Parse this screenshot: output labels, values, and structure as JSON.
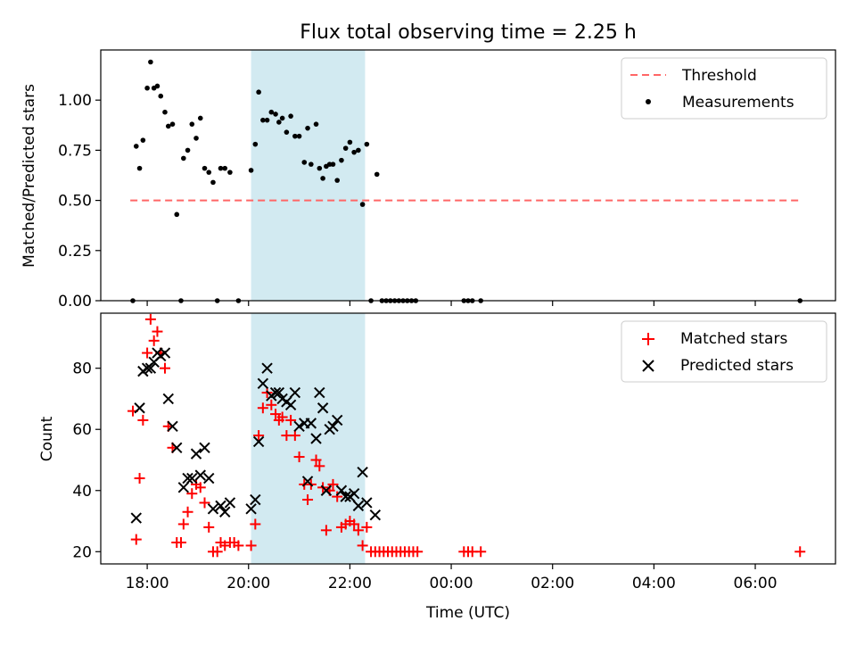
{
  "title": "Flux total observing time = 2.25 h",
  "chart_data": [
    {
      "type": "scatter",
      "ylabel": "Matched/Predicted stars",
      "xlabel": "",
      "ylim": [
        0,
        1.25
      ],
      "y_ticks": [
        0.0,
        0.25,
        0.5,
        0.75,
        1.0
      ],
      "y_tick_labels": [
        "0.00",
        "0.25",
        "0.50",
        "0.75",
        "1.00"
      ],
      "legend_position": "top-right",
      "legend": [
        "Threshold",
        "Measurements"
      ],
      "highlight_band": {
        "x_start": "20:03",
        "x_end": "22:18",
        "color": "#add8e6"
      },
      "threshold": {
        "name": "Threshold",
        "y": 0.5,
        "x_start": "17:40",
        "x_end": "06:55",
        "color": "#ff6666"
      },
      "measurements": {
        "name": "Measurements",
        "color": "#000000",
        "points": [
          [
            "17:43",
            0.0
          ],
          [
            "17:47",
            0.77
          ],
          [
            "17:51",
            0.66
          ],
          [
            "17:55",
            0.8
          ],
          [
            "18:00",
            1.06
          ],
          [
            "18:04",
            1.19
          ],
          [
            "18:08",
            1.06
          ],
          [
            "18:12",
            1.07
          ],
          [
            "18:16",
            1.02
          ],
          [
            "18:21",
            0.94
          ],
          [
            "18:25",
            0.87
          ],
          [
            "18:30",
            0.88
          ],
          [
            "18:35",
            0.43
          ],
          [
            "18:40",
            0.0
          ],
          [
            "18:43",
            0.71
          ],
          [
            "18:48",
            0.75
          ],
          [
            "18:53",
            0.88
          ],
          [
            "18:58",
            0.81
          ],
          [
            "19:03",
            0.91
          ],
          [
            "19:08",
            0.66
          ],
          [
            "19:13",
            0.64
          ],
          [
            "19:18",
            0.59
          ],
          [
            "19:23",
            0.0
          ],
          [
            "19:27",
            0.66
          ],
          [
            "19:32",
            0.66
          ],
          [
            "19:38",
            0.64
          ],
          [
            "19:48",
            0.0
          ],
          [
            "20:03",
            0.65
          ],
          [
            "20:08",
            0.78
          ],
          [
            "20:12",
            1.04
          ],
          [
            "20:17",
            0.9
          ],
          [
            "20:22",
            0.9
          ],
          [
            "20:27",
            0.94
          ],
          [
            "20:32",
            0.93
          ],
          [
            "20:36",
            0.89
          ],
          [
            "20:40",
            0.91
          ],
          [
            "20:45",
            0.84
          ],
          [
            "20:50",
            0.92
          ],
          [
            "20:55",
            0.82
          ],
          [
            "21:00",
            0.82
          ],
          [
            "21:06",
            0.69
          ],
          [
            "21:10",
            0.86
          ],
          [
            "21:14",
            0.68
          ],
          [
            "21:20",
            0.88
          ],
          [
            "21:24",
            0.66
          ],
          [
            "21:28",
            0.61
          ],
          [
            "21:32",
            0.67
          ],
          [
            "21:36",
            0.68
          ],
          [
            "21:40",
            0.68
          ],
          [
            "21:45",
            0.6
          ],
          [
            "21:50",
            0.7
          ],
          [
            "21:55",
            0.76
          ],
          [
            "22:00",
            0.79
          ],
          [
            "22:05",
            0.74
          ],
          [
            "22:10",
            0.75
          ],
          [
            "22:15",
            0.48
          ],
          [
            "22:20",
            0.78
          ],
          [
            "22:25",
            0.0
          ],
          [
            "22:32",
            0.63
          ],
          [
            "22:38",
            0.0
          ],
          [
            "22:43",
            0.0
          ],
          [
            "22:48",
            0.0
          ],
          [
            "22:53",
            0.0
          ],
          [
            "22:58",
            0.0
          ],
          [
            "23:03",
            0.0
          ],
          [
            "23:08",
            0.0
          ],
          [
            "23:13",
            0.0
          ],
          [
            "23:18",
            0.0
          ],
          [
            "00:15",
            0.0
          ],
          [
            "00:20",
            0.0
          ],
          [
            "00:25",
            0.0
          ],
          [
            "00:35",
            0.0
          ],
          [
            "06:53",
            0.0
          ]
        ]
      }
    },
    {
      "type": "scatter",
      "ylabel": "Count",
      "xlabel": "Time (UTC)",
      "ylim": [
        16,
        98
      ],
      "y_ticks": [
        20,
        40,
        60,
        80
      ],
      "y_tick_labels": [
        "20",
        "40",
        "60",
        "80"
      ],
      "x_ticks": [
        "18:00",
        "20:00",
        "22:00",
        "00:00",
        "02:00",
        "04:00",
        "06:00"
      ],
      "xlim": [
        "17:05",
        "07:35"
      ],
      "legend_position": "top-right",
      "legend": [
        "Matched stars",
        "Predicted stars"
      ],
      "highlight_band": {
        "x_start": "20:03",
        "x_end": "22:18",
        "color": "#add8e6"
      },
      "series": [
        {
          "name": "Matched stars",
          "marker": "+",
          "color": "#ff0000",
          "points": [
            [
              "17:43",
              66
            ],
            [
              "17:47",
              24
            ],
            [
              "17:51",
              44
            ],
            [
              "17:55",
              63
            ],
            [
              "18:00",
              85
            ],
            [
              "18:04",
              96
            ],
            [
              "18:08",
              89
            ],
            [
              "18:12",
              92
            ],
            [
              "18:16",
              85
            ],
            [
              "18:21",
              80
            ],
            [
              "18:25",
              61
            ],
            [
              "18:30",
              54
            ],
            [
              "18:35",
              23
            ],
            [
              "18:40",
              23
            ],
            [
              "18:43",
              29
            ],
            [
              "18:48",
              33
            ],
            [
              "18:53",
              39
            ],
            [
              "18:58",
              42
            ],
            [
              "19:03",
              41
            ],
            [
              "19:08",
              36
            ],
            [
              "19:13",
              28
            ],
            [
              "19:18",
              20
            ],
            [
              "19:23",
              20
            ],
            [
              "19:27",
              23
            ],
            [
              "19:32",
              22
            ],
            [
              "19:38",
              23
            ],
            [
              "19:43",
              23
            ],
            [
              "19:48",
              22
            ],
            [
              "20:03",
              22
            ],
            [
              "20:08",
              29
            ],
            [
              "20:12",
              58
            ],
            [
              "20:17",
              67
            ],
            [
              "20:22",
              72
            ],
            [
              "20:27",
              68
            ],
            [
              "20:32",
              65
            ],
            [
              "20:36",
              63
            ],
            [
              "20:40",
              64
            ],
            [
              "20:45",
              58
            ],
            [
              "20:50",
              63
            ],
            [
              "20:55",
              58
            ],
            [
              "21:00",
              51
            ],
            [
              "21:06",
              42
            ],
            [
              "21:10",
              37
            ],
            [
              "21:14",
              42
            ],
            [
              "21:20",
              50
            ],
            [
              "21:24",
              48
            ],
            [
              "21:28",
              41
            ],
            [
              "21:32",
              27
            ],
            [
              "21:36",
              40
            ],
            [
              "21:40",
              42
            ],
            [
              "21:45",
              38
            ],
            [
              "21:50",
              28
            ],
            [
              "21:55",
              29
            ],
            [
              "22:00",
              30
            ],
            [
              "22:05",
              29
            ],
            [
              "22:10",
              27
            ],
            [
              "22:15",
              22
            ],
            [
              "22:20",
              28
            ],
            [
              "22:25",
              20
            ],
            [
              "22:30",
              20
            ],
            [
              "22:35",
              20
            ],
            [
              "22:40",
              20
            ],
            [
              "22:45",
              20
            ],
            [
              "22:50",
              20
            ],
            [
              "22:55",
              20
            ],
            [
              "23:00",
              20
            ],
            [
              "23:05",
              20
            ],
            [
              "23:10",
              20
            ],
            [
              "23:15",
              20
            ],
            [
              "23:20",
              20
            ],
            [
              "00:15",
              20
            ],
            [
              "00:20",
              20
            ],
            [
              "00:25",
              20
            ],
            [
              "00:35",
              20
            ],
            [
              "06:53",
              20
            ]
          ]
        },
        {
          "name": "Predicted stars",
          "marker": "x",
          "color": "#000000",
          "points": [
            [
              "17:47",
              31
            ],
            [
              "17:51",
              67
            ],
            [
              "17:55",
              79
            ],
            [
              "18:00",
              80
            ],
            [
              "18:04",
              80
            ],
            [
              "18:08",
              82
            ],
            [
              "18:12",
              85
            ],
            [
              "18:16",
              84
            ],
            [
              "18:21",
              85
            ],
            [
              "18:25",
              70
            ],
            [
              "18:30",
              61
            ],
            [
              "18:35",
              54
            ],
            [
              "18:43",
              41
            ],
            [
              "18:48",
              44
            ],
            [
              "18:53",
              44
            ],
            [
              "18:58",
              52
            ],
            [
              "19:03",
              45
            ],
            [
              "19:08",
              54
            ],
            [
              "19:13",
              44
            ],
            [
              "19:18",
              34
            ],
            [
              "19:27",
              35
            ],
            [
              "19:32",
              33
            ],
            [
              "19:38",
              36
            ],
            [
              "20:03",
              34
            ],
            [
              "20:08",
              37
            ],
            [
              "20:12",
              56
            ],
            [
              "20:17",
              75
            ],
            [
              "20:22",
              80
            ],
            [
              "20:27",
              71
            ],
            [
              "20:32",
              72
            ],
            [
              "20:36",
              72
            ],
            [
              "20:40",
              70
            ],
            [
              "20:45",
              69
            ],
            [
              "20:50",
              68
            ],
            [
              "20:55",
              72
            ],
            [
              "21:00",
              61
            ],
            [
              "21:06",
              62
            ],
            [
              "21:10",
              43
            ],
            [
              "21:14",
              62
            ],
            [
              "21:20",
              57
            ],
            [
              "21:24",
              72
            ],
            [
              "21:28",
              67
            ],
            [
              "21:32",
              40
            ],
            [
              "21:36",
              60
            ],
            [
              "21:40",
              61
            ],
            [
              "21:45",
              63
            ],
            [
              "21:50",
              40
            ],
            [
              "21:55",
              38
            ],
            [
              "22:00",
              38
            ],
            [
              "22:05",
              39
            ],
            [
              "22:10",
              35
            ],
            [
              "22:15",
              46
            ],
            [
              "22:20",
              36
            ],
            [
              "22:30",
              32
            ]
          ]
        }
      ]
    }
  ]
}
